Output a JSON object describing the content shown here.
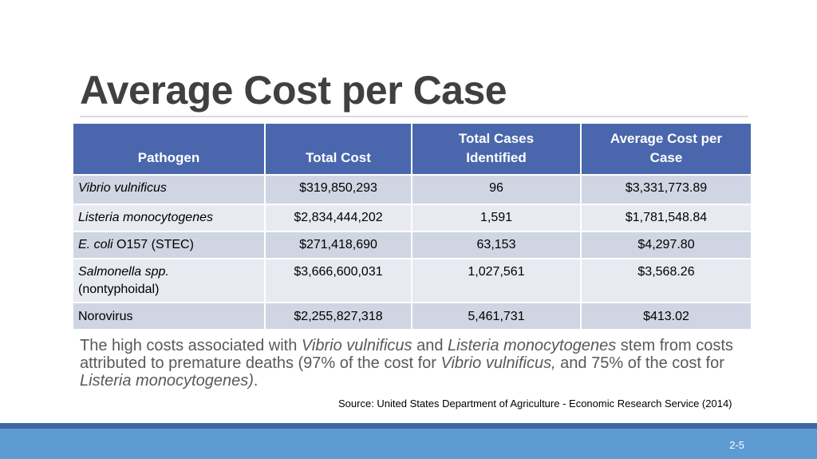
{
  "title": "Average Cost per Case",
  "table": {
    "headers": {
      "pathogen": "Pathogen",
      "total_cost": "Total Cost",
      "total_cases_line1": "Total Cases",
      "total_cases_line2": "Identified",
      "avg_cost_line1": "Average Cost per",
      "avg_cost_line2": "Case"
    },
    "rows": [
      {
        "name_italic": "Vibrio vulnificus",
        "name_plain": "",
        "total_cost": "$319,850,293",
        "cases": "96",
        "avg_cost": "$3,331,773.89"
      },
      {
        "name_italic": "Listeria monocytogenes",
        "name_plain": "",
        "total_cost": "$2,834,444,202",
        "cases": "1,591",
        "avg_cost": "$1,781,548.84"
      },
      {
        "name_italic": "E. coli",
        "name_plain": " O157 (STEC)",
        "total_cost": "$271,418,690",
        "cases": "63,153",
        "avg_cost": "$4,297.80"
      },
      {
        "name_italic": "Salmonella spp.",
        "name_plain": "(nontyphoidal)",
        "total_cost": "$3,666,600,031",
        "cases": "1,027,561",
        "avg_cost": "$3,568.26"
      },
      {
        "name_italic": "",
        "name_plain": "Norovirus",
        "total_cost": "$2,255,827,318",
        "cases": "5,461,731",
        "avg_cost": "$413.02"
      }
    ]
  },
  "caption": {
    "p1": "The high costs associated with ",
    "i1": "Vibrio vulnificus",
    "p2": " and ",
    "i2": "Listeria monocytogenes",
    "p3": " stem from costs attributed to premature deaths (97% of the cost for ",
    "i3": "Vibrio vulnificus,",
    "p4": " and 75% of the cost for ",
    "i4": "Listeria monocytogenes)",
    "p5": "."
  },
  "source": "Source: United States Department of Agriculture - Economic Research Service (2014)",
  "page_number": "2-5"
}
